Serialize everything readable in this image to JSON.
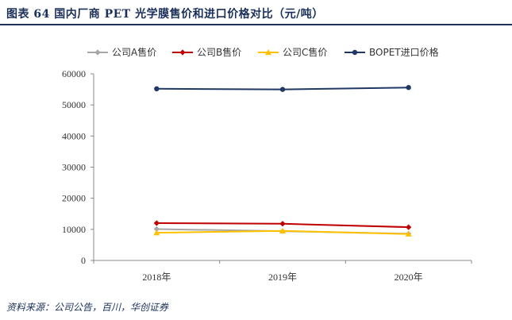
{
  "figure": {
    "title": "图表 64    国内厂商 PET 光学膜售价和进口价格对比（元/吨）",
    "source": "资料来源：公司公告，百川，华创证券"
  },
  "chart_data": {
    "type": "line",
    "categories": [
      "2018年",
      "2019年",
      "2020年"
    ],
    "ylim": [
      0,
      60000
    ],
    "yticks": [
      0,
      10000,
      20000,
      30000,
      40000,
      50000,
      60000
    ],
    "legend_position": "top",
    "grid": false,
    "series": [
      {
        "name": "公司A售价",
        "color": "#a6a6a6",
        "marker": "diamond",
        "values": [
          10100,
          9400,
          8600
        ]
      },
      {
        "name": "公司B售价",
        "color": "#c00000",
        "marker": "diamond",
        "values": [
          12000,
          11800,
          10700
        ]
      },
      {
        "name": "公司C售价",
        "color": "#ffc000",
        "marker": "triangle",
        "values": [
          8900,
          9500,
          8500
        ]
      },
      {
        "name": "BOPET进口价格",
        "color": "#1f3864",
        "marker": "circle",
        "values": [
          55200,
          55000,
          55600
        ]
      }
    ]
  }
}
